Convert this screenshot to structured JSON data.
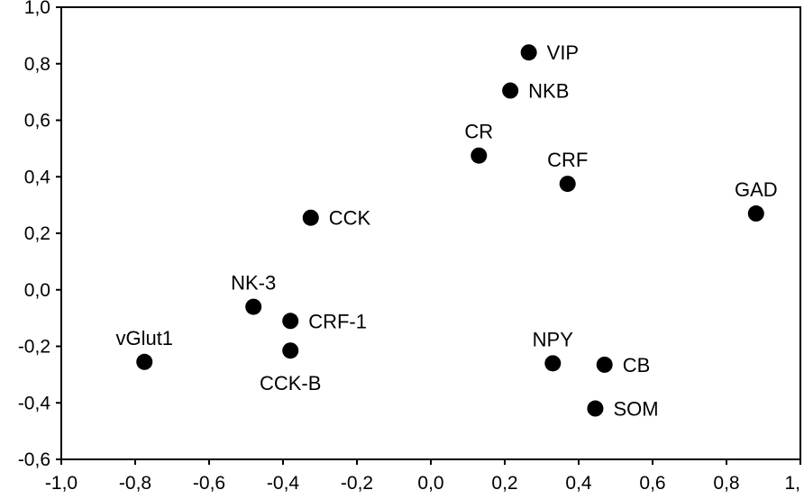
{
  "chart_data": {
    "type": "scatter",
    "title": "",
    "xlabel": "",
    "ylabel": "",
    "xlim": [
      -1.0,
      1.0
    ],
    "ylim": [
      -0.6,
      1.0
    ],
    "grid": false,
    "x_ticks": [
      {
        "value": -1.0,
        "label": "-1,0"
      },
      {
        "value": -0.8,
        "label": "-0,8"
      },
      {
        "value": -0.6,
        "label": "-0,6"
      },
      {
        "value": -0.4,
        "label": "-0,4"
      },
      {
        "value": -0.2,
        "label": "-0,2"
      },
      {
        "value": 0.0,
        "label": "0,0"
      },
      {
        "value": 0.2,
        "label": "0,2"
      },
      {
        "value": 0.4,
        "label": "0,4"
      },
      {
        "value": 0.6,
        "label": "0,6"
      },
      {
        "value": 0.8,
        "label": "0,8"
      },
      {
        "value": 1.0,
        "label": "1,"
      }
    ],
    "y_ticks": [
      {
        "value": 1.0,
        "label": "1,0"
      },
      {
        "value": 0.8,
        "label": "0,8"
      },
      {
        "value": 0.6,
        "label": "0,6"
      },
      {
        "value": 0.4,
        "label": "0,4"
      },
      {
        "value": 0.2,
        "label": "0,2"
      },
      {
        "value": 0.0,
        "label": "0,0"
      },
      {
        "value": -0.2,
        "label": "-0,2"
      },
      {
        "value": -0.4,
        "label": "-0,4"
      },
      {
        "value": -0.6,
        "label": "-0,6"
      }
    ],
    "points": [
      {
        "label": "VIP",
        "x": 0.265,
        "y": 0.84,
        "label_pos": "right"
      },
      {
        "label": "NKB",
        "x": 0.215,
        "y": 0.705,
        "label_pos": "right"
      },
      {
        "label": "CR",
        "x": 0.13,
        "y": 0.475,
        "label_pos": "above"
      },
      {
        "label": "CRF",
        "x": 0.37,
        "y": 0.375,
        "label_pos": "above"
      },
      {
        "label": "GAD",
        "x": 0.88,
        "y": 0.27,
        "label_pos": "above"
      },
      {
        "label": "CCK",
        "x": -0.325,
        "y": 0.255,
        "label_pos": "right"
      },
      {
        "label": "NK-3",
        "x": -0.48,
        "y": -0.06,
        "label_pos": "above"
      },
      {
        "label": "CRF-1",
        "x": -0.38,
        "y": -0.11,
        "label_pos": "right"
      },
      {
        "label": "CCK-B",
        "x": -0.38,
        "y": -0.215,
        "label_pos": "below"
      },
      {
        "label": "vGlut1",
        "x": -0.775,
        "y": -0.255,
        "label_pos": "above"
      },
      {
        "label": "NPY",
        "x": 0.33,
        "y": -0.26,
        "label_pos": "above"
      },
      {
        "label": "CB",
        "x": 0.47,
        "y": -0.265,
        "label_pos": "right"
      },
      {
        "label": "SOM",
        "x": 0.445,
        "y": -0.42,
        "label_pos": "right"
      }
    ]
  }
}
